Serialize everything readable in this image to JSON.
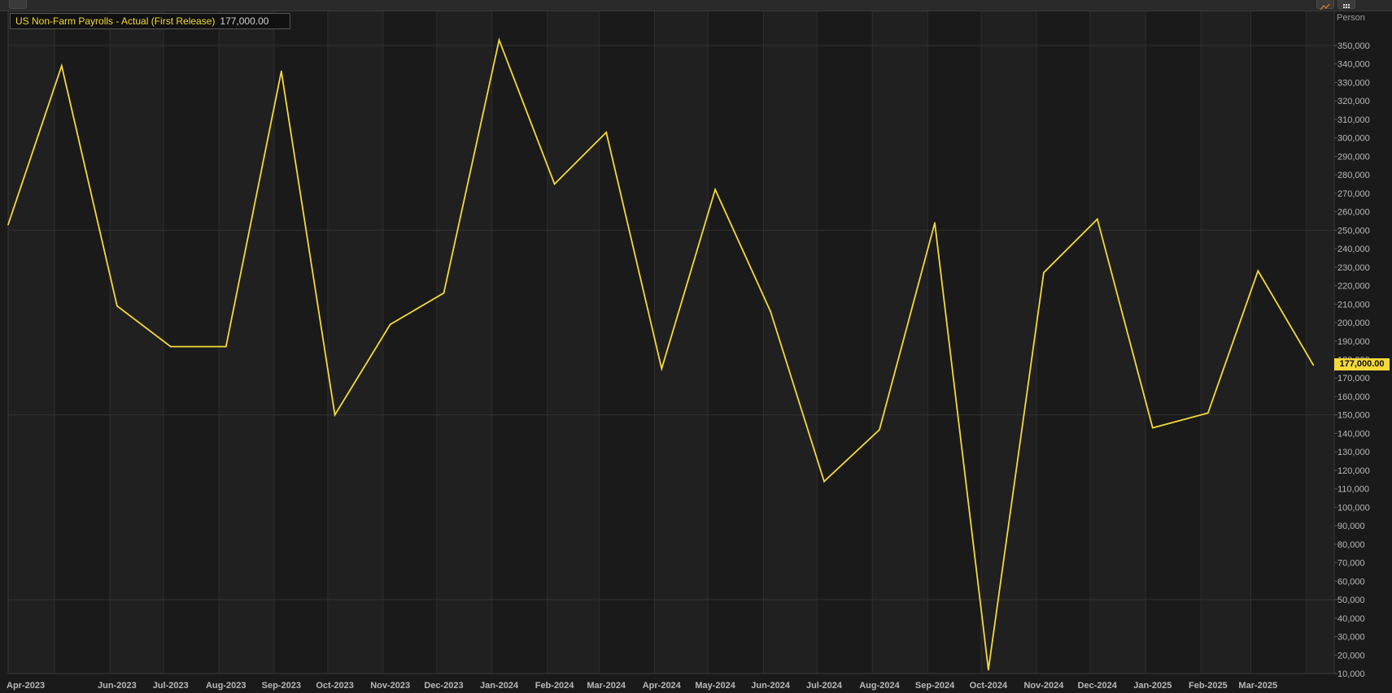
{
  "toolbar": {
    "icons": [
      "chart-type-icon",
      "grid-menu-icon"
    ]
  },
  "legend": {
    "name": "US Non-Farm Payrolls - Actual (First Release)",
    "value": "177,000.00"
  },
  "unit_label": "Person",
  "last_value_tag": "177,000.00",
  "colors": {
    "background": "#1a1a1a",
    "alt_band": "#202020",
    "grid": "#2e2e2e",
    "series": "#f5d93a",
    "text": "#b8b8b8"
  },
  "chart_data": {
    "type": "line",
    "title": "",
    "xlabel": "",
    "ylabel": "Person",
    "ylim": [
      10000,
      350000
    ],
    "y_ticks": [
      10000,
      20000,
      30000,
      40000,
      50000,
      60000,
      70000,
      80000,
      90000,
      100000,
      110000,
      120000,
      130000,
      140000,
      150000,
      160000,
      170000,
      180000,
      190000,
      200000,
      210000,
      220000,
      230000,
      240000,
      250000,
      260000,
      270000,
      280000,
      290000,
      300000,
      310000,
      320000,
      330000,
      340000,
      350000
    ],
    "x_tick_labels": [
      "Apr-2023",
      "Jun-2023",
      "Jul-2023",
      "Aug-2023",
      "Sep-2023",
      "Oct-2023",
      "Nov-2023",
      "Dec-2023",
      "Jan-2024",
      "Feb-2024",
      "Mar-2024",
      "Apr-2024",
      "May-2024",
      "Jun-2024",
      "Jul-2024",
      "Aug-2024",
      "Sep-2024",
      "Oct-2024",
      "Nov-2024",
      "Dec-2024",
      "Jan-2025",
      "Feb-2025",
      "Mar-2025"
    ],
    "grid": true,
    "legend_position": "top-left",
    "series": [
      {
        "name": "US Non-Farm Payrolls - Actual (First Release)",
        "color": "#f5d93a",
        "points": [
          {
            "x": "2023-04-05",
            "y": 253000
          },
          {
            "x": "2023-05-05",
            "y": 339000
          },
          {
            "x": "2023-06-05",
            "y": 209000
          },
          {
            "x": "2023-07-05",
            "y": 187000
          },
          {
            "x": "2023-08-05",
            "y": 187000
          },
          {
            "x": "2023-09-05",
            "y": 336000
          },
          {
            "x": "2023-10-05",
            "y": 150000
          },
          {
            "x": "2023-11-05",
            "y": 199000
          },
          {
            "x": "2023-12-05",
            "y": 216000
          },
          {
            "x": "2024-01-05",
            "y": 353000
          },
          {
            "x": "2024-02-05",
            "y": 275000
          },
          {
            "x": "2024-03-05",
            "y": 303000
          },
          {
            "x": "2024-04-05",
            "y": 175000
          },
          {
            "x": "2024-05-05",
            "y": 272000
          },
          {
            "x": "2024-06-05",
            "y": 206000
          },
          {
            "x": "2024-07-05",
            "y": 114000
          },
          {
            "x": "2024-08-05",
            "y": 142000
          },
          {
            "x": "2024-09-05",
            "y": 254000
          },
          {
            "x": "2024-10-05",
            "y": 12000
          },
          {
            "x": "2024-11-05",
            "y": 227000
          },
          {
            "x": "2024-12-05",
            "y": 256000
          },
          {
            "x": "2025-01-05",
            "y": 143000
          },
          {
            "x": "2025-02-05",
            "y": 151000
          },
          {
            "x": "2025-03-05",
            "y": 228000
          },
          {
            "x": "2025-04-05",
            "y": 177000
          }
        ]
      }
    ]
  }
}
